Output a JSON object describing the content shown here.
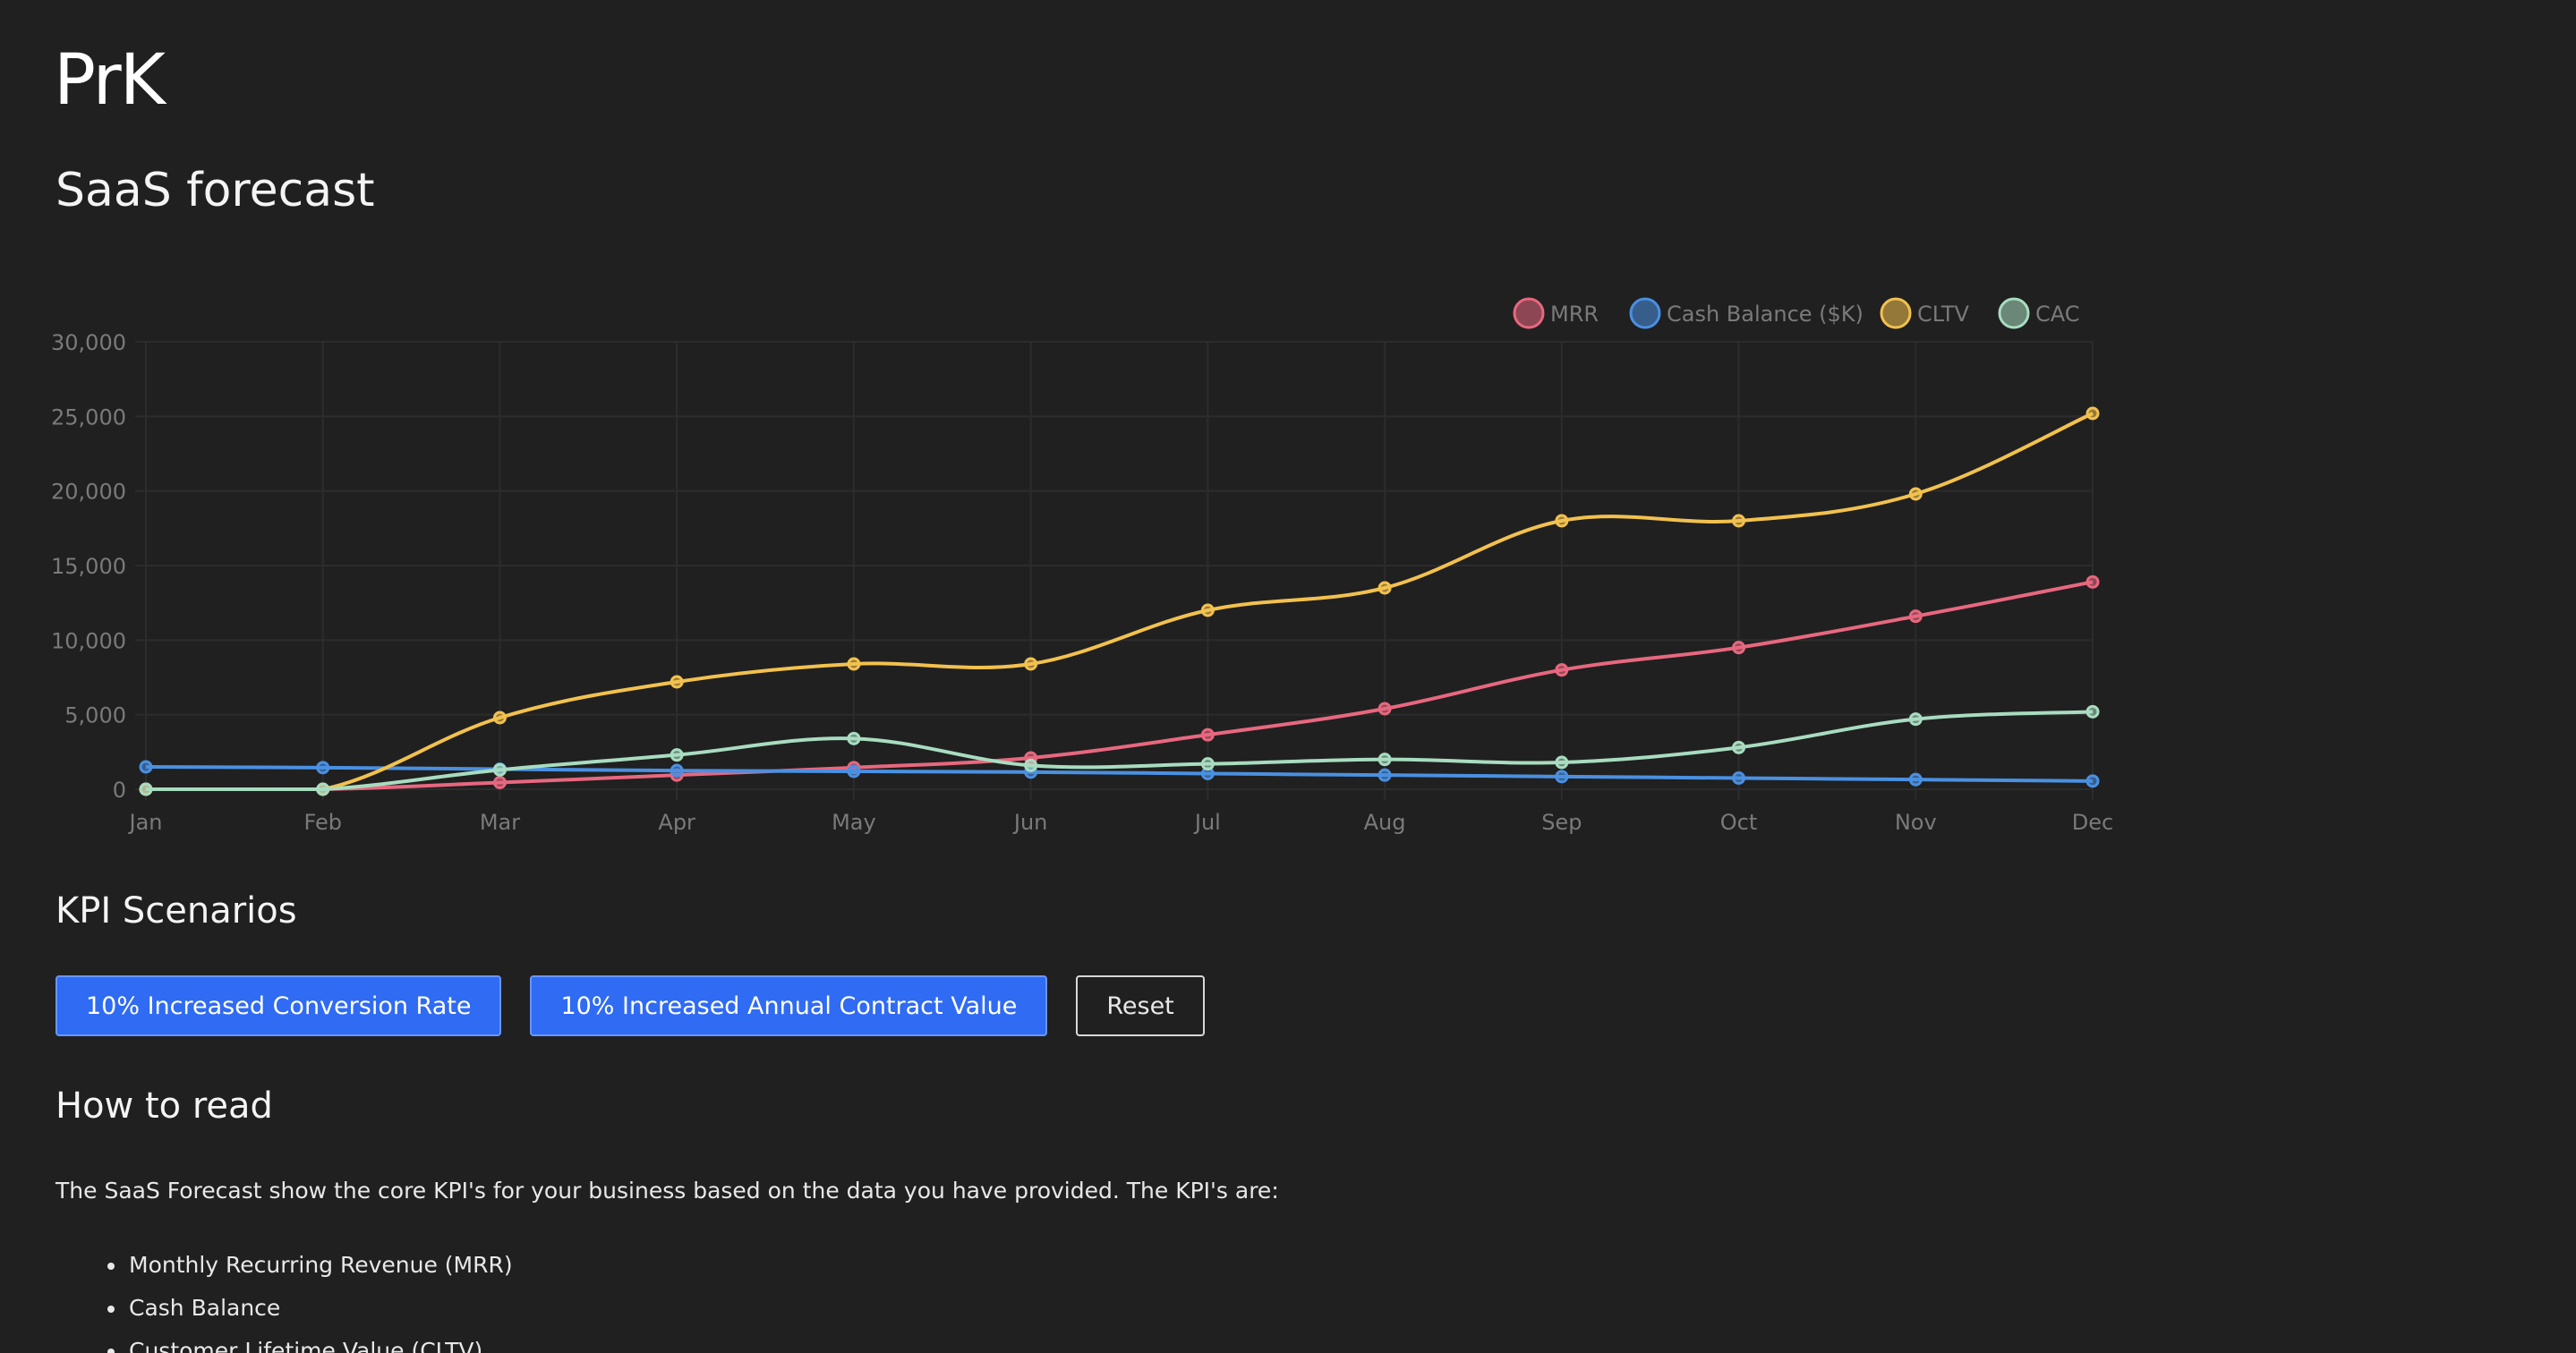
{
  "app": {
    "logo": "PrK",
    "title": "SaaS forecast"
  },
  "kpi_section": {
    "title": "KPI Scenarios",
    "buttons": [
      {
        "label": "10% Increased Conversion Rate"
      },
      {
        "label": "10% Increased Annual Contract Value"
      },
      {
        "label": "Reset"
      }
    ]
  },
  "how_to_read": {
    "title": "How to read",
    "intro": "The SaaS Forecast show the core KPI's for your business based on the data you have provided. The KPI's are:",
    "items": [
      "Monthly Recurring Revenue (MRR)",
      "Cash Balance",
      "Customer Lifetime Value (CLTV)"
    ]
  },
  "chart_data": {
    "type": "line",
    "categories": [
      "Jan",
      "Feb",
      "Mar",
      "Apr",
      "May",
      "Jun",
      "Jul",
      "Aug",
      "Sep",
      "Oct",
      "Nov",
      "Dec"
    ],
    "ylim": [
      0,
      30000
    ],
    "yticks": [
      "0",
      "5,000",
      "10,000",
      "15,000",
      "20,000",
      "25,000",
      "30,000"
    ],
    "grid": true,
    "legend_position": "top-right",
    "series": [
      {
        "name": "MRR",
        "color": "#e8677f",
        "values": [
          0,
          0,
          450,
          950,
          1450,
          2100,
          3650,
          5400,
          8000,
          9500,
          11600,
          13900
        ]
      },
      {
        "name": "Cash Balance ($K)",
        "color": "#4a90e2",
        "values": [
          1500,
          1450,
          1350,
          1250,
          1200,
          1150,
          1050,
          950,
          850,
          750,
          650,
          550
        ]
      },
      {
        "name": "CLTV",
        "color": "#f2c14e",
        "values": [
          0,
          0,
          4800,
          7200,
          8400,
          8400,
          12000,
          13500,
          18000,
          18000,
          19800,
          25200
        ]
      },
      {
        "name": "CAC",
        "color": "#a8dcc0",
        "values": [
          0,
          0,
          1300,
          2300,
          3400,
          1600,
          1700,
          2000,
          1800,
          2800,
          4700,
          5200
        ]
      }
    ]
  }
}
